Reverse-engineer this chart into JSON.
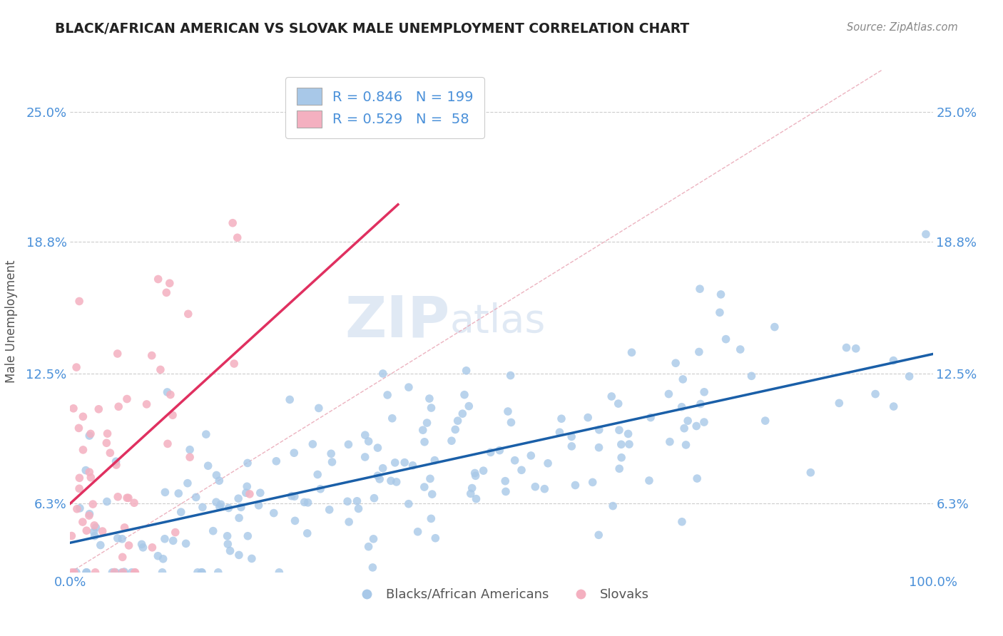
{
  "title": "BLACK/AFRICAN AMERICAN VS SLOVAK MALE UNEMPLOYMENT CORRELATION CHART",
  "source": "Source: ZipAtlas.com",
  "ylabel": "Male Unemployment",
  "xlabel": "",
  "blue_R": 0.846,
  "blue_N": 199,
  "pink_R": 0.529,
  "pink_N": 58,
  "blue_color": "#a8c8e8",
  "blue_line_color": "#1a5fa8",
  "pink_color": "#f4b0c0",
  "pink_line_color": "#e03060",
  "yticks": [
    0.063,
    0.125,
    0.188,
    0.25
  ],
  "ytick_labels": [
    "6.3%",
    "12.5%",
    "18.8%",
    "25.0%"
  ],
  "xtick_labels": [
    "0.0%",
    "100.0%"
  ],
  "xlim": [
    0,
    1
  ],
  "ylim": [
    0.03,
    0.27
  ],
  "watermark_zip": "ZIP",
  "watermark_atlas": "atlas",
  "legend_label_1": "Blacks/African Americans",
  "legend_label_2": "Slovaks",
  "title_color": "#222222",
  "axis_label_color": "#4a90d9",
  "background_color": "#ffffff",
  "grid_color": "#cccccc",
  "ref_line_color": "#d0b0b0"
}
